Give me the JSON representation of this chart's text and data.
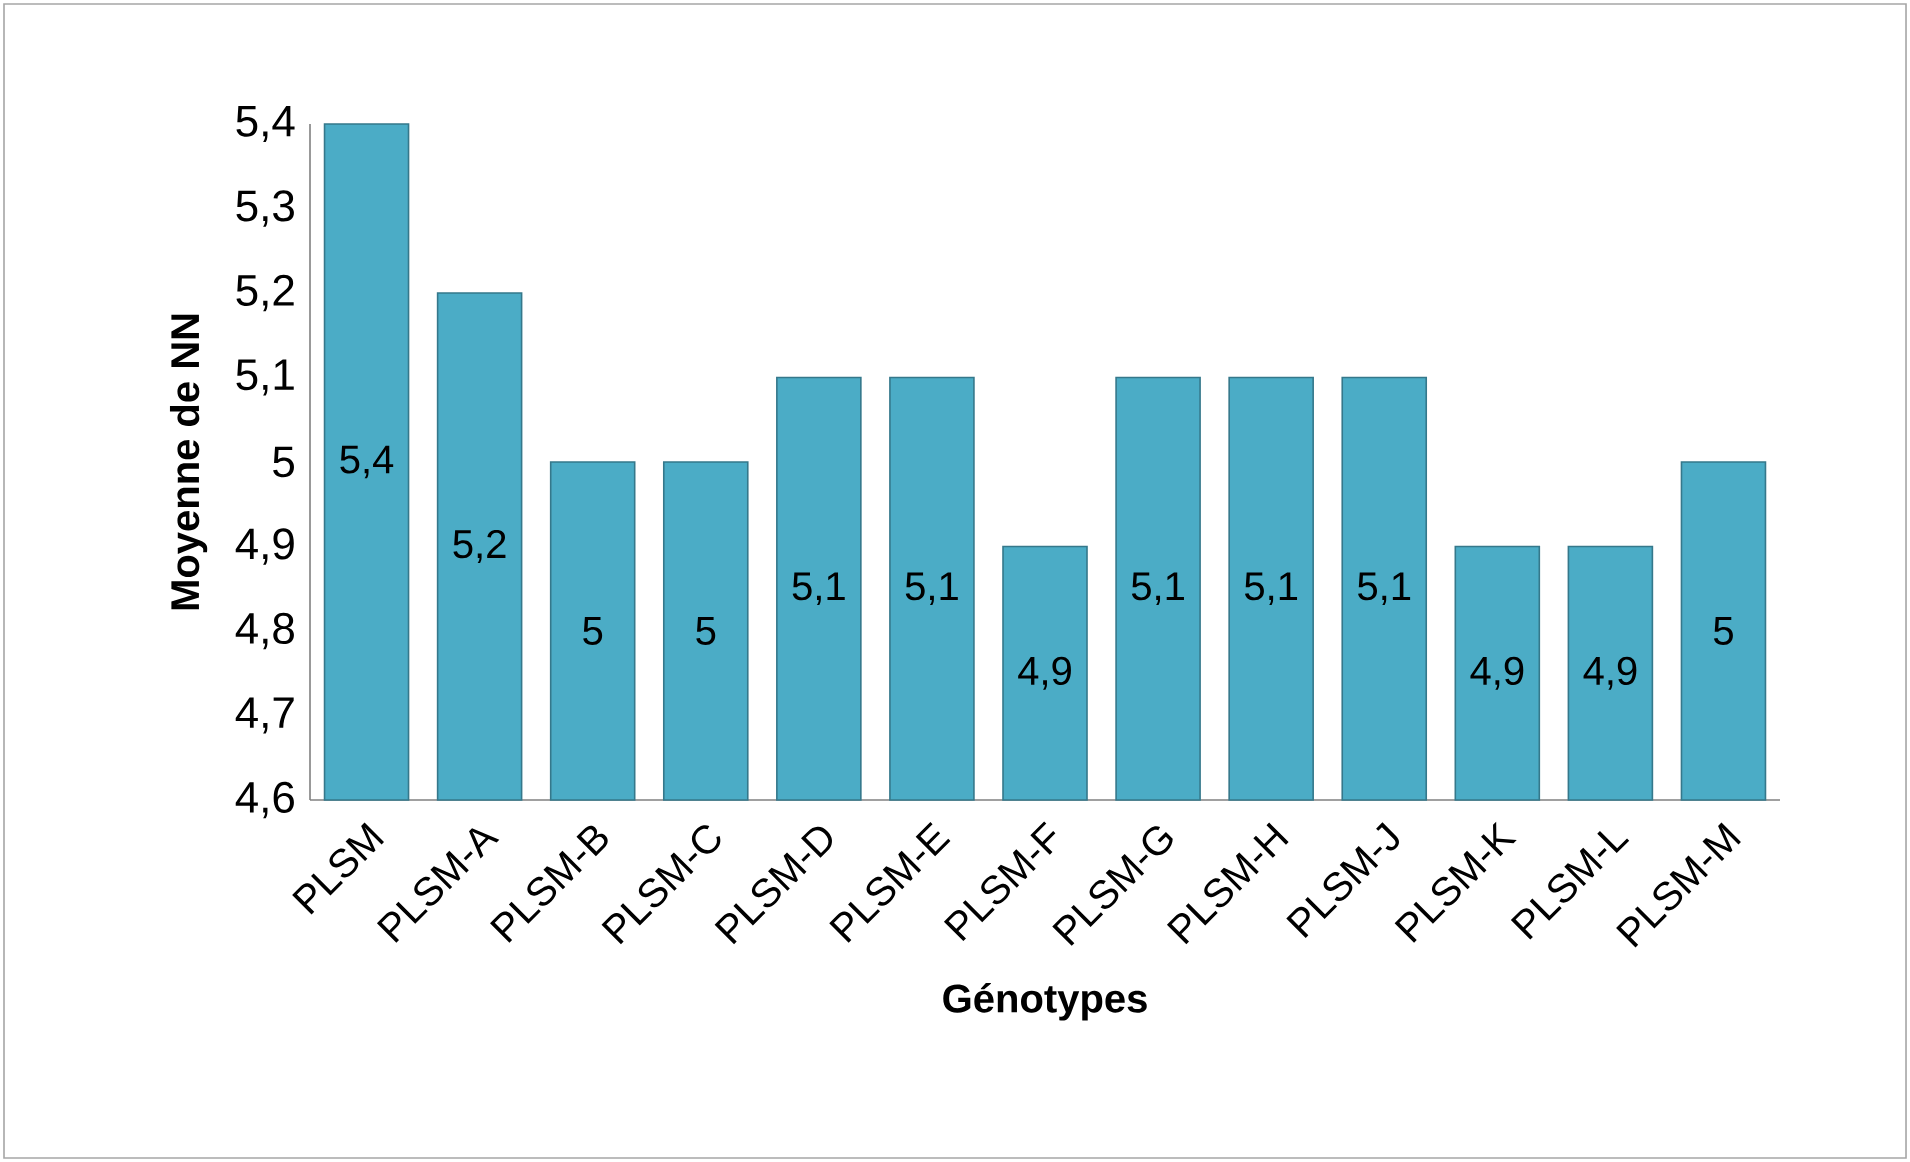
{
  "chart_data": {
    "type": "bar",
    "xlabel": "Génotypes",
    "ylabel": "Moyenne de NN",
    "categories": [
      "PLSM",
      "PLSM-A",
      "PLSM-B",
      "PLSM-C",
      "PLSM-D",
      "PLSM-E",
      "PLSM-F",
      "PLSM-G",
      "PLSM-H",
      "PLSM-J",
      "PLSM-K",
      "PLSM-L",
      "PLSM-M"
    ],
    "values": [
      5.4,
      5.2,
      5.0,
      5.0,
      5.1,
      5.1,
      4.9,
      5.1,
      5.1,
      5.1,
      4.9,
      4.9,
      5.0
    ],
    "value_labels": [
      "5,4",
      "5,2",
      "5",
      "5",
      "5,1",
      "5,1",
      "4,9",
      "5,1",
      "5,1",
      "5,1",
      "4,9",
      "4,9",
      "5"
    ],
    "color": "#4bacc6",
    "ylim": [
      4.6,
      5.4
    ],
    "yticks": [
      {
        "value": 4.6,
        "label": "4,6"
      },
      {
        "value": 4.7,
        "label": "4,7"
      },
      {
        "value": 4.8,
        "label": "4,8"
      },
      {
        "value": 4.9,
        "label": "4,9"
      },
      {
        "value": 5.0,
        "label": "5"
      },
      {
        "value": 5.1,
        "label": "5,1"
      },
      {
        "value": 5.2,
        "label": "5,2"
      },
      {
        "value": 5.3,
        "label": "5,3"
      },
      {
        "value": 5.4,
        "label": "5,4"
      }
    ]
  }
}
